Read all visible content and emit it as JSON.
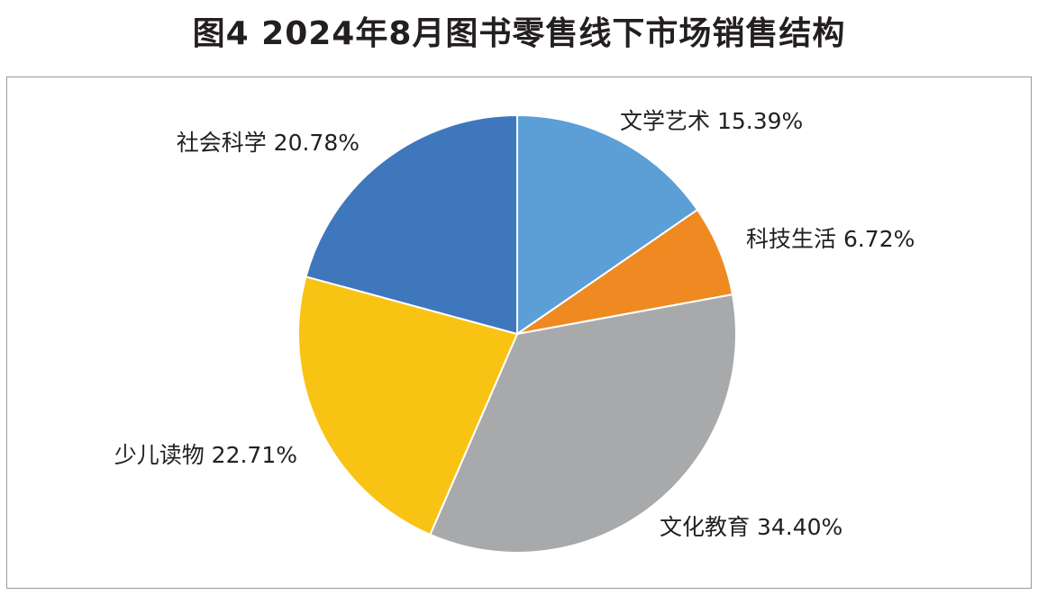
{
  "chart_data": {
    "type": "pie",
    "title": "图4  2024年8月图书零售线下市场销售结构",
    "start_angle_deg": 0,
    "direction": "clockwise",
    "slices": [
      {
        "label": "文学艺术 15.39%",
        "category": "文学艺术",
        "value": 15.39,
        "color": "#5b9fd6"
      },
      {
        "label": "科技生活 6.72%",
        "category": "科技生活",
        "value": 6.72,
        "color": "#ef8a22"
      },
      {
        "label": "文化教育 34.40%",
        "category": "文化教育",
        "value": 34.4,
        "color": "#a7a9ab"
      },
      {
        "label": "少儿读物 22.71%",
        "category": "少儿读物",
        "value": 22.71,
        "color": "#f9c314"
      },
      {
        "label": "社会科学 20.78%",
        "category": "社会科学",
        "value": 20.78,
        "color": "#3f77bd"
      }
    ],
    "legend": "none",
    "label_placement": "outside"
  }
}
